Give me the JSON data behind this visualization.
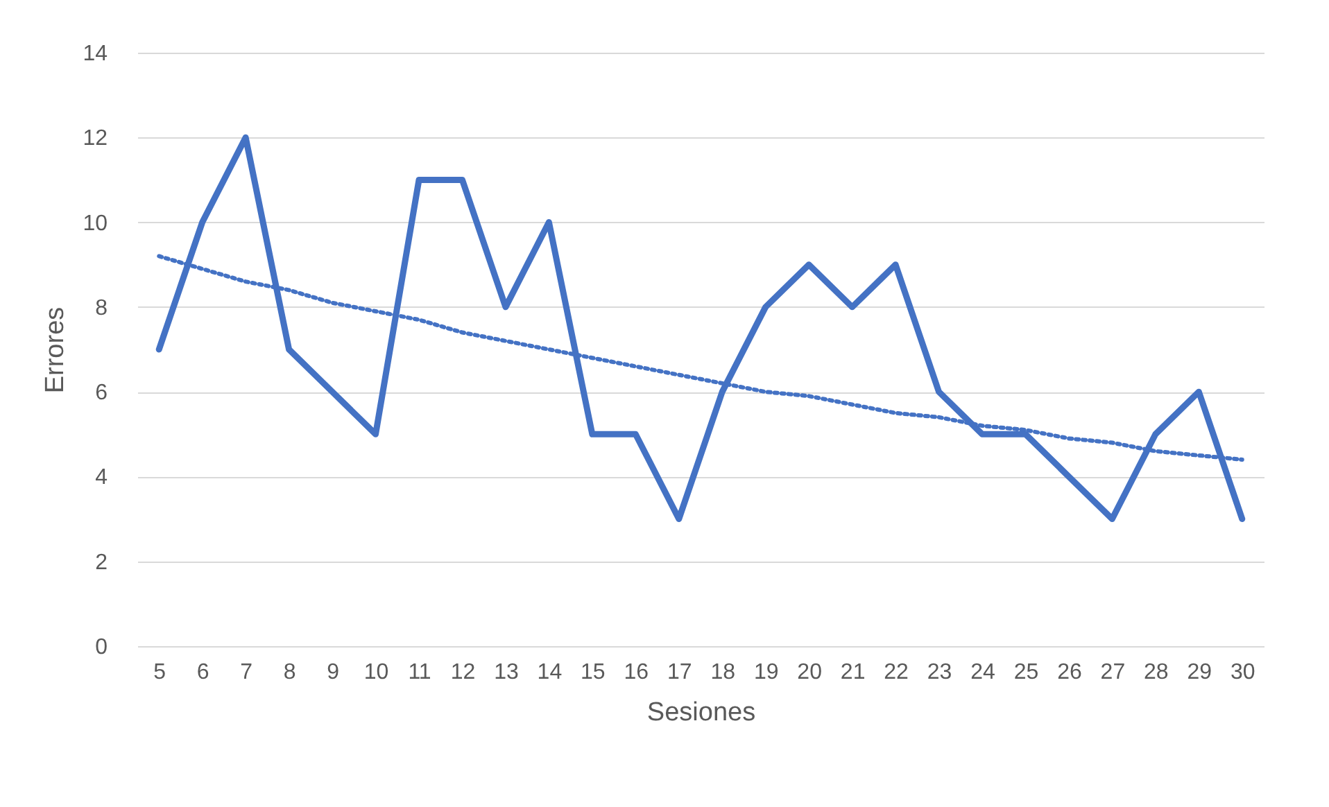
{
  "chart_data": {
    "type": "line",
    "xlabel": "Sesiones",
    "ylabel": "Errores",
    "categories": [
      "5",
      "6",
      "7",
      "8",
      "9",
      "10",
      "11",
      "12",
      "13",
      "14",
      "15",
      "16",
      "17",
      "18",
      "19",
      "20",
      "21",
      "22",
      "23",
      "24",
      "25",
      "26",
      "27",
      "28",
      "29",
      "30"
    ],
    "series": [
      {
        "color": "#4472c4",
        "line_style": "solid",
        "values": [
          7,
          10,
          12,
          7,
          6,
          5,
          11,
          11,
          8,
          10,
          5,
          5,
          3,
          6,
          8,
          9,
          8,
          9,
          6,
          5,
          5,
          4,
          3,
          5,
          6,
          3
        ]
      },
      {
        "color": "#4472c4",
        "line_style": "dotted",
        "values": [
          9.2,
          8.9,
          8.6,
          8.4,
          8.1,
          7.9,
          7.7,
          7.4,
          7.2,
          7.0,
          6.8,
          6.6,
          6.4,
          6.2,
          6.0,
          5.9,
          5.7,
          5.5,
          5.4,
          5.2,
          5.1,
          4.9,
          4.8,
          4.6,
          4.5,
          4.4
        ]
      }
    ],
    "ylim": [
      0,
      14
    ],
    "yticks": [
      0,
      2,
      4,
      6,
      8,
      10,
      12,
      14
    ],
    "grid": "y"
  }
}
